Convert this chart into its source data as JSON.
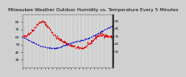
{
  "title": "Milwaukee Weather Outdoor Humidity vs. Temperature Every 5 Minutes",
  "bg_color": "#d0d0d0",
  "plot_bg_color": "#d0d0d0",
  "grid_color": "#ffffff",
  "temp_color": "#dd0000",
  "humidity_color": "#0000cc",
  "n_points": 288,
  "temp_ylim": [
    20,
    90
  ],
  "humidity_ylim": [
    30,
    100
  ],
  "left_yticks": [
    30,
    40,
    50,
    60,
    70,
    80
  ],
  "right_yticks": [
    51,
    61,
    71,
    81,
    91
  ],
  "title_fontsize": 4.2,
  "tick_fontsize": 3.0,
  "linewidth": 0.7
}
